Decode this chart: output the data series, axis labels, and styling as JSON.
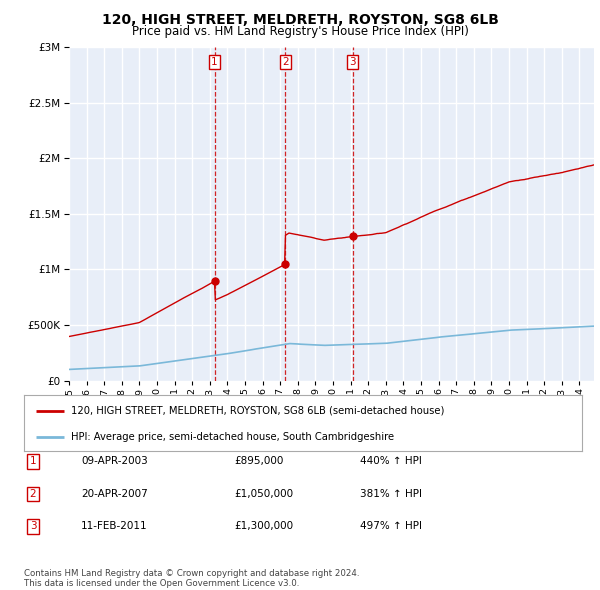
{
  "title": "120, HIGH STREET, MELDRETH, ROYSTON, SG8 6LB",
  "subtitle": "Price paid vs. HM Land Registry's House Price Index (HPI)",
  "legend_line1": "120, HIGH STREET, MELDRETH, ROYSTON, SG8 6LB (semi-detached house)",
  "legend_line2": "HPI: Average price, semi-detached house, South Cambridgeshire",
  "copyright": "Contains HM Land Registry data © Crown copyright and database right 2024.\nThis data is licensed under the Open Government Licence v3.0.",
  "sales": [
    {
      "num": 1,
      "date": "09-APR-2003",
      "price": 895000,
      "hpi_pct": "440%",
      "x_year": 2003.27
    },
    {
      "num": 2,
      "date": "20-APR-2007",
      "price": 1050000,
      "hpi_pct": "381%",
      "x_year": 2007.3
    },
    {
      "num": 3,
      "date": "11-FEB-2011",
      "price": 1300000,
      "hpi_pct": "497%",
      "x_year": 2011.12
    }
  ],
  "hpi_color": "#7ab8d9",
  "price_color": "#cc0000",
  "vline_color": "#cc0000",
  "ylim_max": 3000000,
  "ylim_min": 0,
  "xlim_min": 1995.0,
  "xlim_max": 2024.83,
  "plot_bg_color": "#e8eef8",
  "grid_color": "#ffffff"
}
